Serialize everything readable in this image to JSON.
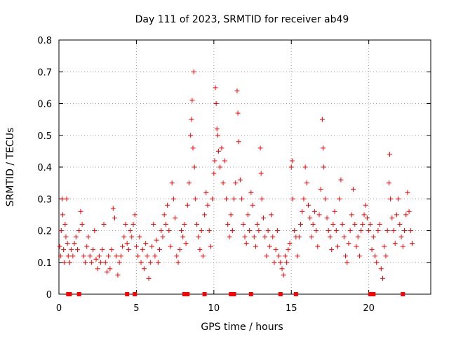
{
  "chart_data": {
    "type": "scatter",
    "title": "Day 111 of 2023, SRMTID for receiver ab49",
    "xlabel": "GPS time / hours",
    "ylabel": "SRMTID / TECUs",
    "xlim": [
      0,
      24
    ],
    "ylim": [
      0,
      0.8
    ],
    "xticks": [
      0,
      5,
      10,
      15,
      20
    ],
    "xtick_labels": [
      "0",
      "5",
      "10",
      "15",
      "20"
    ],
    "yticks": [
      0,
      0.1,
      0.2,
      0.3,
      0.4,
      0.5,
      0.6,
      0.7,
      0.8
    ],
    "ytick_labels": [
      "0",
      "0.1",
      "0.2",
      "0.3",
      "0.4",
      "0.5",
      "0.6",
      "0.7",
      "0.8"
    ],
    "grid": true,
    "marker": "plus",
    "marker_color": "#ff0000",
    "series": [
      {
        "name": "SRMTID",
        "points": [
          [
            0.05,
            0.15
          ],
          [
            0.1,
            0.12
          ],
          [
            0.15,
            0.2
          ],
          [
            0.2,
            0.3
          ],
          [
            0.25,
            0.25
          ],
          [
            0.3,
            0.14
          ],
          [
            0.35,
            0.1
          ],
          [
            0.4,
            0.22
          ],
          [
            0.45,
            0.18
          ],
          [
            0.5,
            0.3
          ],
          [
            0.55,
            0.16
          ],
          [
            0.6,
            0.12
          ],
          [
            0.7,
            0.1
          ],
          [
            0.8,
            0.14
          ],
          [
            0.9,
            0.12
          ],
          [
            1.0,
            0.16
          ],
          [
            1.1,
            0.18
          ],
          [
            1.2,
            0.14
          ],
          [
            1.3,
            0.2
          ],
          [
            1.4,
            0.26
          ],
          [
            1.5,
            0.22
          ],
          [
            1.6,
            0.12
          ],
          [
            1.7,
            0.1
          ],
          [
            1.8,
            0.15
          ],
          [
            1.9,
            0.18
          ],
          [
            2.0,
            0.12
          ],
          [
            2.1,
            0.1
          ],
          [
            2.2,
            0.14
          ],
          [
            2.3,
            0.2
          ],
          [
            2.4,
            0.11
          ],
          [
            2.5,
            0.08
          ],
          [
            2.6,
            0.12
          ],
          [
            2.7,
            0.1
          ],
          [
            2.8,
            0.14
          ],
          [
            2.9,
            0.22
          ],
          [
            3.0,
            0.1
          ],
          [
            3.1,
            0.07
          ],
          [
            3.2,
            0.12
          ],
          [
            3.3,
            0.08
          ],
          [
            3.4,
            0.14
          ],
          [
            3.5,
            0.27
          ],
          [
            3.6,
            0.24
          ],
          [
            3.7,
            0.12
          ],
          [
            3.8,
            0.06
          ],
          [
            3.9,
            0.1
          ],
          [
            4.0,
            0.12
          ],
          [
            4.1,
            0.15
          ],
          [
            4.2,
            0.18
          ],
          [
            4.3,
            0.22
          ],
          [
            4.4,
            0.16
          ],
          [
            4.5,
            0.14
          ],
          [
            4.6,
            0.2
          ],
          [
            4.7,
            0.18
          ],
          [
            4.8,
            0.22
          ],
          [
            4.9,
            0.25
          ],
          [
            5.0,
            0.15
          ],
          [
            5.1,
            0.12
          ],
          [
            5.2,
            0.18
          ],
          [
            5.3,
            0.1
          ],
          [
            5.4,
            0.14
          ],
          [
            5.5,
            0.08
          ],
          [
            5.6,
            0.16
          ],
          [
            5.7,
            0.12
          ],
          [
            5.8,
            0.05
          ],
          [
            5.9,
            0.1
          ],
          [
            6.0,
            0.15
          ],
          [
            6.1,
            0.22
          ],
          [
            6.2,
            0.12
          ],
          [
            6.3,
            0.17
          ],
          [
            6.4,
            0.1
          ],
          [
            6.5,
            0.14
          ],
          [
            6.6,
            0.2
          ],
          [
            6.7,
            0.18
          ],
          [
            6.8,
            0.25
          ],
          [
            6.9,
            0.22
          ],
          [
            7.0,
            0.28
          ],
          [
            7.1,
            0.2
          ],
          [
            7.2,
            0.15
          ],
          [
            7.3,
            0.35
          ],
          [
            7.4,
            0.3
          ],
          [
            7.5,
            0.24
          ],
          [
            7.6,
            0.12
          ],
          [
            7.7,
            0.1
          ],
          [
            7.8,
            0.14
          ],
          [
            7.9,
            0.2
          ],
          [
            8.0,
            0.18
          ],
          [
            8.1,
            0.22
          ],
          [
            8.2,
            0.16
          ],
          [
            8.3,
            0.28
          ],
          [
            8.4,
            0.35
          ],
          [
            8.5,
            0.5
          ],
          [
            8.55,
            0.55
          ],
          [
            8.6,
            0.61
          ],
          [
            8.65,
            0.46
          ],
          [
            8.7,
            0.7
          ],
          [
            8.75,
            0.4
          ],
          [
            8.8,
            0.3
          ],
          [
            8.9,
            0.22
          ],
          [
            9.0,
            0.18
          ],
          [
            9.1,
            0.14
          ],
          [
            9.2,
            0.2
          ],
          [
            9.3,
            0.12
          ],
          [
            9.4,
            0.25
          ],
          [
            9.5,
            0.32
          ],
          [
            9.6,
            0.28
          ],
          [
            9.7,
            0.2
          ],
          [
            9.8,
            0.15
          ],
          [
            9.9,
            0.3
          ],
          [
            10.0,
            0.38
          ],
          [
            10.05,
            0.42
          ],
          [
            10.1,
            0.65
          ],
          [
            10.15,
            0.6
          ],
          [
            10.2,
            0.52
          ],
          [
            10.25,
            0.5
          ],
          [
            10.3,
            0.45
          ],
          [
            10.4,
            0.4
          ],
          [
            10.5,
            0.46
          ],
          [
            10.6,
            0.35
          ],
          [
            10.7,
            0.42
          ],
          [
            10.8,
            0.3
          ],
          [
            10.9,
            0.22
          ],
          [
            11.0,
            0.18
          ],
          [
            11.1,
            0.25
          ],
          [
            11.2,
            0.2
          ],
          [
            11.3,
            0.3
          ],
          [
            11.4,
            0.35
          ],
          [
            11.5,
            0.64
          ],
          [
            11.55,
            0.57
          ],
          [
            11.6,
            0.48
          ],
          [
            11.7,
            0.36
          ],
          [
            11.8,
            0.3
          ],
          [
            11.9,
            0.22
          ],
          [
            12.0,
            0.18
          ],
          [
            12.1,
            0.16
          ],
          [
            12.2,
            0.25
          ],
          [
            12.3,
            0.2
          ],
          [
            12.4,
            0.32
          ],
          [
            12.5,
            0.28
          ],
          [
            12.6,
            0.18
          ],
          [
            12.7,
            0.15
          ],
          [
            12.8,
            0.22
          ],
          [
            12.9,
            0.2
          ],
          [
            13.0,
            0.46
          ],
          [
            13.05,
            0.38
          ],
          [
            13.1,
            0.3
          ],
          [
            13.2,
            0.24
          ],
          [
            13.3,
            0.18
          ],
          [
            13.4,
            0.12
          ],
          [
            13.5,
            0.2
          ],
          [
            13.6,
            0.15
          ],
          [
            13.7,
            0.25
          ],
          [
            13.8,
            0.18
          ],
          [
            13.9,
            0.1
          ],
          [
            14.0,
            0.14
          ],
          [
            14.1,
            0.2
          ],
          [
            14.2,
            0.12
          ],
          [
            14.3,
            0.1
          ],
          [
            14.4,
            0.08
          ],
          [
            14.5,
            0.06
          ],
          [
            14.6,
            0.12
          ],
          [
            14.7,
            0.1
          ],
          [
            14.8,
            0.14
          ],
          [
            14.9,
            0.16
          ],
          [
            15.0,
            0.4
          ],
          [
            15.05,
            0.42
          ],
          [
            15.1,
            0.3
          ],
          [
            15.2,
            0.2
          ],
          [
            15.3,
            0.18
          ],
          [
            15.4,
            0.12
          ],
          [
            15.5,
            0.18
          ],
          [
            15.6,
            0.22
          ],
          [
            15.7,
            0.26
          ],
          [
            15.8,
            0.3
          ],
          [
            15.9,
            0.4
          ],
          [
            16.0,
            0.35
          ],
          [
            16.1,
            0.28
          ],
          [
            16.2,
            0.24
          ],
          [
            16.3,
            0.18
          ],
          [
            16.4,
            0.22
          ],
          [
            16.5,
            0.26
          ],
          [
            16.6,
            0.2
          ],
          [
            16.7,
            0.15
          ],
          [
            16.8,
            0.25
          ],
          [
            16.9,
            0.33
          ],
          [
            17.0,
            0.55
          ],
          [
            17.05,
            0.46
          ],
          [
            17.1,
            0.4
          ],
          [
            17.2,
            0.3
          ],
          [
            17.3,
            0.24
          ],
          [
            17.4,
            0.2
          ],
          [
            17.5,
            0.18
          ],
          [
            17.6,
            0.14
          ],
          [
            17.7,
            0.22
          ],
          [
            17.8,
            0.26
          ],
          [
            17.9,
            0.2
          ],
          [
            18.0,
            0.15
          ],
          [
            18.1,
            0.3
          ],
          [
            18.2,
            0.36
          ],
          [
            18.3,
            0.22
          ],
          [
            18.4,
            0.18
          ],
          [
            18.5,
            0.12
          ],
          [
            18.6,
            0.1
          ],
          [
            18.7,
            0.16
          ],
          [
            18.8,
            0.2
          ],
          [
            18.9,
            0.25
          ],
          [
            19.0,
            0.33
          ],
          [
            19.1,
            0.22
          ],
          [
            19.2,
            0.15
          ],
          [
            19.3,
            0.18
          ],
          [
            19.4,
            0.12
          ],
          [
            19.5,
            0.2
          ],
          [
            19.6,
            0.22
          ],
          [
            19.7,
            0.25
          ],
          [
            19.8,
            0.28
          ],
          [
            19.9,
            0.24
          ],
          [
            20.0,
            0.2
          ],
          [
            20.1,
            0.22
          ],
          [
            20.2,
            0.14
          ],
          [
            20.3,
            0.18
          ],
          [
            20.4,
            0.12
          ],
          [
            20.5,
            0.1
          ],
          [
            20.6,
            0.2
          ],
          [
            20.7,
            0.22
          ],
          [
            20.8,
            0.08
          ],
          [
            20.9,
            0.05
          ],
          [
            21.0,
            0.15
          ],
          [
            21.1,
            0.12
          ],
          [
            21.2,
            0.2
          ],
          [
            21.3,
            0.35
          ],
          [
            21.35,
            0.44
          ],
          [
            21.4,
            0.3
          ],
          [
            21.5,
            0.24
          ],
          [
            21.6,
            0.2
          ],
          [
            21.7,
            0.16
          ],
          [
            21.8,
            0.25
          ],
          [
            21.9,
            0.3
          ],
          [
            22.0,
            0.22
          ],
          [
            22.1,
            0.18
          ],
          [
            22.2,
            0.15
          ],
          [
            22.3,
            0.2
          ],
          [
            22.4,
            0.25
          ],
          [
            22.5,
            0.32
          ],
          [
            22.6,
            0.26
          ],
          [
            22.7,
            0.2
          ],
          [
            22.8,
            0.16
          ]
        ]
      }
    ],
    "zero_markers_x": [
      0.6,
      0.7,
      1.3,
      4.4,
      4.9,
      8.1,
      8.3,
      9.4,
      11.1,
      11.3,
      12.4,
      14.3,
      15.3,
      20.1,
      20.3,
      22.2
    ]
  }
}
